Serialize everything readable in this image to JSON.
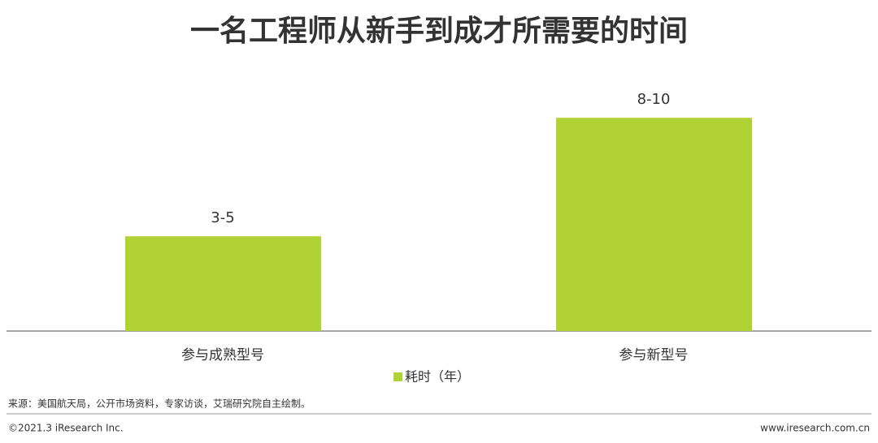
{
  "chart_data": {
    "type": "bar",
    "title": "一名工程师从新手到成才所需要的时间",
    "categories": [
      "参与成熟型号",
      "参与新型号"
    ],
    "series": [
      {
        "name": "耗时（年）",
        "color": "#b1d234",
        "values": [
          4,
          9
        ],
        "value_labels": [
          "3-5",
          "8-10"
        ]
      }
    ],
    "ylim": [
      0,
      10
    ]
  },
  "source": "来源：美国航天局，公开市场资料，专家访谈，艾瑞研究院自主绘制。",
  "footer": {
    "copyright": "©2021.3 iResearch Inc.",
    "website": "www.iresearch.com.cn"
  }
}
